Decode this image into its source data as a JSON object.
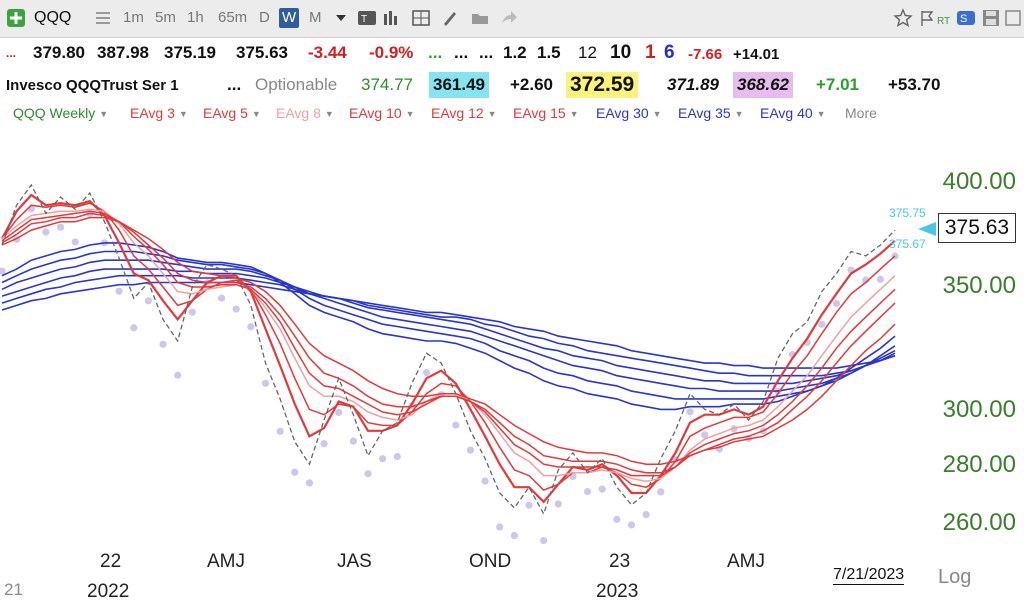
{
  "toolbar": {
    "symbol": "QQQ",
    "intervals": [
      "1m",
      "5m",
      "1h",
      "65m",
      "D",
      "W",
      "M"
    ],
    "active_interval": "W",
    "rt_label": "RT",
    "icons": [
      "add-symbol-icon",
      "list-icon",
      "dropdown-icon",
      "text-tool-icon",
      "bar-chart-icon",
      "grid-icon",
      "pen-icon",
      "folder-icon",
      "share-icon",
      "star-icon",
      "flag-icon",
      "signal-icon",
      "save-icon",
      "window-icon"
    ]
  },
  "quote_row1": {
    "dots": "...",
    "open": "379.80",
    "high": "387.98",
    "low": "375.19",
    "close": "375.63",
    "change": "-3.44",
    "change_pct": "-0.9%",
    "dots_green": "...",
    "dots2": "...",
    "dots3": "...",
    "v1": "1.2",
    "v2": "1.5",
    "v3": "12",
    "v4": "10",
    "v5": "1",
    "v6": "6",
    "v7": "-7.66",
    "v8": "+14.01"
  },
  "quote_row2": {
    "name": "Invesco QQQTrust Ser 1",
    "dots": "...",
    "optionable": "Optionable",
    "p1": "374.77",
    "p2": "361.49",
    "p3": "+2.60",
    "p4": "372.59",
    "p5": "371.89",
    "p6": "368.62",
    "p7": "+7.01",
    "p8": "+53.70"
  },
  "studies": [
    {
      "label": "QQQ Weekly",
      "color": "#2e8b2e"
    },
    {
      "label": "EAvg 3",
      "color": "#e03a3a"
    },
    {
      "label": "EAvg 5",
      "color": "#e03a3a"
    },
    {
      "label": "EAvg 8",
      "color": "#f0a0a0"
    },
    {
      "label": "EAvg 10",
      "color": "#e03a3a"
    },
    {
      "label": "EAvg 12",
      "color": "#e03a3a"
    },
    {
      "label": "EAvg 15",
      "color": "#e03a3a"
    },
    {
      "label": "EAvg 30",
      "color": "#2a36c8"
    },
    {
      "label": "EAvg 35",
      "color": "#2a36c8"
    },
    {
      "label": "EAvg 40",
      "color": "#2a36c8"
    },
    {
      "label": "More",
      "color": "#888888"
    }
  ],
  "chart_data": {
    "type": "line",
    "y_scale": "log",
    "ylim": [
      255,
      405
    ],
    "y_ticks": [
      "400.00",
      "350.00",
      "300.00",
      "280.00",
      "260.00"
    ],
    "x_labels": [
      "22",
      "AMJ",
      "JAS",
      "OND",
      "23",
      "AMJ"
    ],
    "year_labels": [
      "2022",
      "2023"
    ],
    "left_edge_label": "21",
    "last_price": "375.63",
    "cyan_labels": [
      "375.75",
      "375.67"
    ],
    "date": "7/21/2023",
    "log_label": "Log",
    "close_series": [
      369,
      388,
      398,
      384,
      392,
      386,
      394,
      380,
      363,
      345,
      352,
      336,
      327,
      350,
      360,
      358,
      355,
      342,
      318,
      304,
      288,
      280,
      296,
      312,
      298,
      283,
      292,
      295,
      310,
      322,
      318,
      306,
      292,
      282,
      270,
      265,
      272,
      263,
      278,
      284,
      277,
      282,
      272,
      266,
      270,
      282,
      292,
      306,
      300,
      298,
      302,
      296,
      303,
      320,
      330,
      335,
      348,
      356,
      366,
      364,
      369,
      376
    ],
    "ema_fast": [
      [
        372,
        385,
        393,
        388,
        389,
        388,
        390,
        383,
        370,
        356,
        353,
        344,
        336,
        344,
        352,
        355,
        355,
        348,
        332,
        317,
        302,
        290,
        293,
        303,
        301,
        292,
        292,
        294,
        302,
        312,
        315,
        310,
        300,
        290,
        280,
        272,
        272,
        267,
        273,
        279,
        278,
        280,
        276,
        270,
        270,
        276,
        284,
        295,
        298,
        298,
        300,
        298,
        301,
        311,
        320,
        328,
        338,
        347,
        356,
        360,
        365,
        371
      ],
      [
        372,
        381,
        388,
        387,
        388,
        387,
        389,
        385,
        376,
        364,
        358,
        350,
        342,
        344,
        349,
        352,
        353,
        349,
        338,
        326,
        312,
        300,
        298,
        302,
        301,
        295,
        294,
        294,
        299,
        306,
        310,
        309,
        303,
        295,
        286,
        278,
        276,
        271,
        273,
        277,
        277,
        279,
        277,
        273,
        272,
        275,
        281,
        290,
        293,
        295,
        297,
        297,
        299,
        306,
        314,
        321,
        330,
        339,
        347,
        352,
        358,
        364
      ],
      [
        372,
        378,
        383,
        384,
        385,
        385,
        386,
        385,
        379,
        370,
        364,
        356,
        348,
        347,
        349,
        350,
        351,
        349,
        341,
        332,
        320,
        309,
        305,
        305,
        303,
        299,
        297,
        296,
        298,
        303,
        306,
        306,
        303,
        298,
        291,
        284,
        281,
        276,
        276,
        277,
        277,
        278,
        277,
        275,
        274,
        275,
        279,
        285,
        289,
        291,
        293,
        294,
        296,
        301,
        307,
        313,
        321,
        329,
        337,
        343,
        349,
        355
      ],
      [
        371,
        376,
        381,
        382,
        383,
        384,
        385,
        384,
        380,
        373,
        367,
        360,
        352,
        350,
        350,
        351,
        351,
        349,
        343,
        335,
        324,
        314,
        309,
        308,
        305,
        302,
        299,
        298,
        299,
        302,
        305,
        305,
        303,
        299,
        293,
        287,
        284,
        280,
        279,
        279,
        279,
        279,
        278,
        276,
        276,
        276,
        279,
        284,
        287,
        289,
        291,
        292,
        294,
        298,
        303,
        309,
        316,
        324,
        331,
        337,
        343,
        349
      ],
      [
        370,
        374,
        379,
        380,
        382,
        382,
        384,
        383,
        380,
        375,
        369,
        363,
        356,
        353,
        352,
        352,
        352,
        350,
        345,
        338,
        329,
        320,
        314,
        312,
        309,
        305,
        302,
        301,
        301,
        303,
        305,
        305,
        303,
        300,
        295,
        290,
        287,
        283,
        282,
        281,
        281,
        281,
        280,
        278,
        277,
        277,
        279,
        283,
        285,
        287,
        289,
        290,
        292,
        295,
        300,
        305,
        311,
        318,
        325,
        331,
        337,
        343
      ],
      [
        369,
        372,
        376,
        378,
        380,
        380,
        382,
        382,
        380,
        376,
        372,
        367,
        361,
        357,
        356,
        355,
        354,
        352,
        348,
        342,
        334,
        326,
        321,
        318,
        315,
        311,
        308,
        306,
        305,
        305,
        306,
        306,
        304,
        302,
        298,
        294,
        291,
        288,
        286,
        285,
        284,
        284,
        283,
        281,
        280,
        280,
        281,
        283,
        285,
        286,
        288,
        289,
        290,
        293,
        296,
        300,
        305,
        311,
        317,
        323,
        328,
        334
      ]
    ],
    "ema_slow": [
      [
        355,
        358,
        362,
        364,
        366,
        367,
        369,
        370,
        370,
        369,
        368,
        366,
        363,
        362,
        361,
        361,
        360,
        359,
        356,
        352,
        347,
        342,
        339,
        337,
        335,
        332,
        330,
        329,
        328,
        327,
        327,
        326,
        324,
        322,
        319,
        316,
        314,
        311,
        309,
        308,
        306,
        305,
        304,
        302,
        301,
        300,
        300,
        301,
        301,
        301,
        302,
        302,
        302,
        303,
        305,
        307,
        309,
        312,
        316,
        320,
        324,
        329
      ],
      [
        352,
        355,
        358,
        360,
        362,
        363,
        365,
        366,
        366,
        366,
        365,
        364,
        362,
        361,
        360,
        360,
        359,
        358,
        356,
        353,
        349,
        345,
        342,
        340,
        338,
        336,
        334,
        333,
        332,
        331,
        330,
        329,
        328,
        326,
        323,
        321,
        319,
        316,
        314,
        313,
        311,
        310,
        309,
        307,
        306,
        305,
        304,
        304,
        304,
        304,
        304,
        304,
        304,
        305,
        306,
        307,
        309,
        311,
        314,
        317,
        321,
        325
      ],
      [
        349,
        352,
        354,
        356,
        358,
        359,
        361,
        362,
        362,
        362,
        362,
        361,
        360,
        359,
        358,
        358,
        358,
        357,
        355,
        353,
        350,
        347,
        345,
        343,
        341,
        339,
        337,
        336,
        335,
        334,
        333,
        332,
        331,
        329,
        327,
        325,
        323,
        321,
        319,
        317,
        316,
        315,
        313,
        312,
        311,
        310,
        309,
        308,
        308,
        307,
        307,
        307,
        307,
        307,
        308,
        309,
        310,
        312,
        314,
        317,
        320,
        323
      ],
      [
        346,
        348,
        350,
        352,
        354,
        355,
        357,
        358,
        358,
        358,
        358,
        358,
        357,
        357,
        356,
        356,
        356,
        355,
        354,
        352,
        350,
        348,
        346,
        345,
        343,
        341,
        340,
        339,
        338,
        337,
        336,
        335,
        334,
        332,
        330,
        328,
        326,
        324,
        323,
        321,
        320,
        319,
        317,
        316,
        315,
        314,
        313,
        312,
        311,
        311,
        310,
        310,
        310,
        310,
        310,
        311,
        312,
        313,
        315,
        317,
        319,
        322
      ],
      [
        343,
        345,
        347,
        349,
        350,
        352,
        353,
        354,
        355,
        355,
        355,
        355,
        355,
        354,
        354,
        354,
        354,
        353,
        352,
        351,
        349,
        347,
        346,
        345,
        344,
        342,
        341,
        340,
        339,
        338,
        337,
        337,
        336,
        334,
        333,
        331,
        329,
        328,
        326,
        325,
        323,
        322,
        321,
        320,
        319,
        318,
        317,
        316,
        315,
        314,
        314,
        313,
        313,
        313,
        313,
        313,
        313,
        314,
        315,
        317,
        319,
        321
      ],
      [
        340,
        342,
        344,
        345,
        347,
        348,
        349,
        350,
        351,
        351,
        352,
        352,
        352,
        352,
        352,
        352,
        352,
        351,
        350,
        349,
        348,
        347,
        346,
        345,
        344,
        343,
        342,
        341,
        340,
        339,
        339,
        338,
        337,
        336,
        335,
        333,
        332,
        331,
        329,
        328,
        327,
        326,
        325,
        323,
        322,
        321,
        320,
        319,
        318,
        318,
        317,
        317,
        316,
        316,
        316,
        316,
        316,
        316,
        317,
        318,
        319,
        321
      ]
    ],
    "colors": {
      "ema_fast": "#e03a3a",
      "ema_fast_light": "#f0a0a0",
      "ema_slow": "#2a36c8",
      "close": "#666666",
      "dots": "#cfc6ea",
      "y_labels": "#3a7d2c",
      "cyan": "#46c8e6"
    }
  }
}
